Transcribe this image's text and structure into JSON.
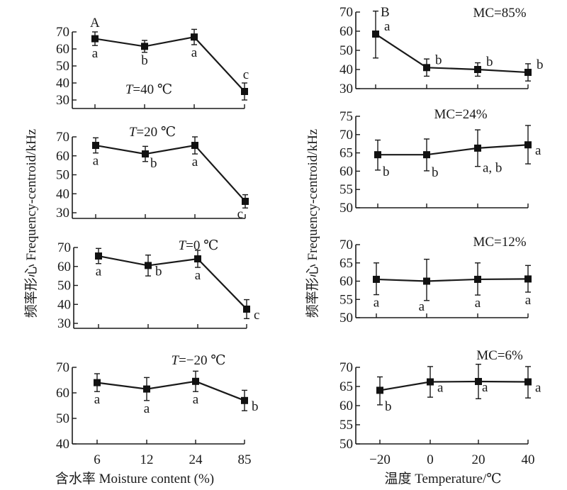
{
  "figure": {
    "left_ylabel": "频率形心 Frequency-centroid/kHz",
    "right_ylabel": "频率形心 Frequency-centroid/kHz",
    "left_xlabel": "含水率 Moisture content (%)",
    "right_xlabel": "温度 Temperature/℃",
    "left_panel_letter": "A",
    "right_panel_letter": "B"
  },
  "chart_data": [
    {
      "type": "line",
      "column": "left",
      "title": "T=40 ℃",
      "title_italic_part": "T",
      "title_rest": "=40 ℃",
      "categories": [
        "6",
        "12",
        "24",
        "85"
      ],
      "values": [
        66,
        61.5,
        67,
        35
      ],
      "errors_up": [
        4,
        3.5,
        4.5,
        5
      ],
      "errors_down": [
        4,
        3.5,
        4.5,
        5
      ],
      "letters": [
        "a",
        "b",
        "a",
        "c"
      ],
      "yticks": [
        30,
        40,
        50,
        60,
        70
      ],
      "ylim": [
        25,
        72
      ]
    },
    {
      "type": "line",
      "column": "left",
      "title": "T=20 ℃",
      "title_italic_part": "T",
      "title_rest": "=20 ℃",
      "categories": [
        "6",
        "12",
        "24",
        "85"
      ],
      "values": [
        65.5,
        61,
        65.5,
        36
      ],
      "errors_up": [
        4,
        4,
        4.5,
        3.5
      ],
      "errors_down": [
        4,
        4,
        4.5,
        3.5
      ],
      "letters": [
        "a",
        "b",
        "a",
        "c"
      ],
      "yticks": [
        30,
        40,
        50,
        60,
        70
      ],
      "ylim": [
        28,
        72
      ]
    },
    {
      "type": "line",
      "column": "left",
      "title": "T=0 ℃",
      "title_italic_part": "T",
      "title_rest": "=0 ℃",
      "categories": [
        "6",
        "12",
        "24",
        "85"
      ],
      "values": [
        65.5,
        60.5,
        64,
        37.5
      ],
      "errors_up": [
        4,
        5.5,
        4.5,
        5
      ],
      "errors_down": [
        4,
        5.5,
        4.5,
        5
      ],
      "letters": [
        "a",
        "b",
        "a",
        "c"
      ],
      "yticks": [
        30,
        40,
        50,
        60,
        70
      ],
      "ylim": [
        27,
        72
      ]
    },
    {
      "type": "line",
      "column": "left",
      "title": "T=−20 ℃",
      "title_italic_part": "T",
      "title_rest": "=−20 ℃",
      "categories": [
        "6",
        "12",
        "24",
        "85"
      ],
      "values": [
        64,
        61.5,
        64.5,
        57
      ],
      "errors_up": [
        3.5,
        4.5,
        4,
        4
      ],
      "errors_down": [
        3.5,
        4.5,
        4,
        4
      ],
      "letters": [
        "a",
        "a",
        "a",
        "b"
      ],
      "yticks": [
        40,
        50,
        60,
        70
      ],
      "ylim": [
        40,
        72
      ],
      "xlabel": "含水率 Moisture content (%)"
    },
    {
      "type": "line",
      "column": "right",
      "title": "MC=85%",
      "categories": [
        "−20",
        "0",
        "20",
        "40"
      ],
      "values": [
        58.5,
        41,
        40,
        38.5
      ],
      "errors_up": [
        12,
        4.5,
        3.5,
        4.5
      ],
      "errors_down": [
        12.5,
        4.5,
        3.5,
        4.5
      ],
      "letters": [
        "a",
        "b",
        "b",
        "b"
      ],
      "yticks": [
        30,
        40,
        50,
        60,
        70
      ],
      "ylim": [
        30,
        72
      ]
    },
    {
      "type": "line",
      "column": "right",
      "title": "MC=24%",
      "categories": [
        "−20",
        "0",
        "20",
        "40"
      ],
      "values": [
        64.5,
        64.5,
        66.3,
        67.2
      ],
      "errors_up": [
        4,
        4.3,
        5,
        5.3
      ],
      "errors_down": [
        4.2,
        4.4,
        5,
        5.2
      ],
      "letters": [
        "b",
        "b",
        "a, b",
        "a"
      ],
      "yticks": [
        50,
        55,
        60,
        65,
        70,
        75
      ],
      "ylim": [
        50,
        76
      ]
    },
    {
      "type": "line",
      "column": "right",
      "title": "MC=12%",
      "categories": [
        "−20",
        "0",
        "20",
        "40"
      ],
      "values": [
        60.5,
        60,
        60.5,
        60.6
      ],
      "errors_up": [
        4.5,
        6,
        4.5,
        3.7
      ],
      "errors_down": [
        4.2,
        5.3,
        4.3,
        3.6
      ],
      "letters": [
        "a",
        "a",
        "a",
        "a"
      ],
      "yticks": [
        50,
        55,
        60,
        65,
        70
      ],
      "ylim": [
        50,
        71
      ]
    },
    {
      "type": "line",
      "column": "right",
      "title": "MC=6%",
      "categories": [
        "−20",
        "0",
        "20",
        "40"
      ],
      "values": [
        64,
        66.2,
        66.3,
        66.2
      ],
      "errors_up": [
        3.5,
        4,
        4.5,
        4
      ],
      "errors_down": [
        3.8,
        4,
        4.5,
        4.2
      ],
      "letters": [
        "b",
        "a",
        "a",
        "a"
      ],
      "yticks": [
        50,
        55,
        60,
        65,
        70
      ],
      "ylim": [
        50,
        71
      ],
      "xlabel": "温度 Temperature/℃"
    }
  ]
}
